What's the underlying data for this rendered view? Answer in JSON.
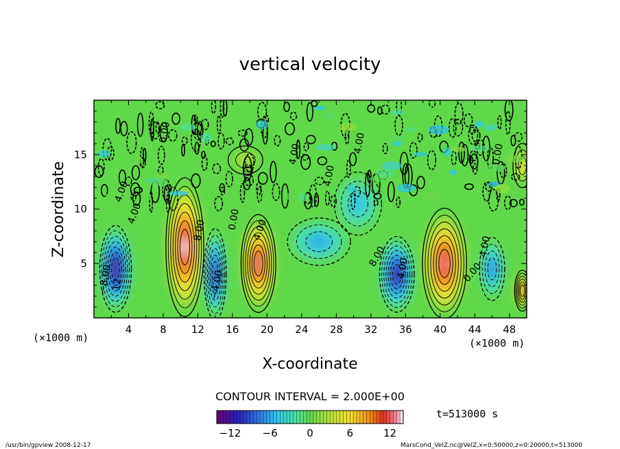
{
  "chart_data": {
    "type": "heatmap",
    "title": "vertical velocity",
    "xlabel": "X-coordinate",
    "ylabel": "Z-coordinate",
    "x_unit": "(×1000 m)",
    "y_unit": "(×1000 m)",
    "xlim": [
      0,
      50
    ],
    "ylim": [
      0,
      20
    ],
    "x_ticks": [
      4,
      8,
      12,
      16,
      20,
      24,
      28,
      32,
      36,
      40,
      44,
      48
    ],
    "y_ticks": [
      5,
      10,
      15
    ],
    "contour_interval_text": "CONTOUR INTERVAL = 2.000E+00",
    "time_text": "t=513000 s",
    "colorbar": {
      "range": [
        -14,
        14
      ],
      "ticks": [
        -12,
        -6,
        0,
        6,
        12
      ],
      "tick_labels": [
        "−12",
        "−6",
        "0",
        "6",
        "12"
      ],
      "colormap": "blue-cyan-green-yellow-red-pink"
    },
    "contour_labels": [
      "4.00",
      "4.00",
      "8.00",
      "0.00",
      "0.00",
      "4.00",
      "4.00",
      "4.00",
      "8.00",
      "4.00",
      "0.00",
      "4.00",
      "−8.00",
      "−4.00",
      "12",
      "0.00",
      "4.00"
    ],
    "features": [
      {
        "x": 2.5,
        "z": 4.5,
        "value": -14
      },
      {
        "x": 10.5,
        "z": 6.5,
        "value": 14
      },
      {
        "x": 14.0,
        "z": 4.0,
        "value": -12
      },
      {
        "x": 19.0,
        "z": 5.0,
        "value": 13
      },
      {
        "x": 26.0,
        "z": 7.0,
        "value": -6
      },
      {
        "x": 30.5,
        "z": 10.5,
        "value": -5
      },
      {
        "x": 35.0,
        "z": 4.0,
        "value": -13
      },
      {
        "x": 40.5,
        "z": 5.0,
        "value": 13
      },
      {
        "x": 46.0,
        "z": 4.5,
        "value": -8
      },
      {
        "x": 49.5,
        "z": 2.5,
        "value": 11
      },
      {
        "x": 17.5,
        "z": 14.5,
        "value": 3
      },
      {
        "x": 49.5,
        "z": 14.0,
        "value": 6
      }
    ],
    "grid": false,
    "legend": "bottom-center colorbar"
  },
  "footer": {
    "left": "/usr/bin/gpview  2008-12-17",
    "right": "MarsCond_VelZ.nc@VelZ,x=0:50000,z=0:20000,t=513000"
  }
}
